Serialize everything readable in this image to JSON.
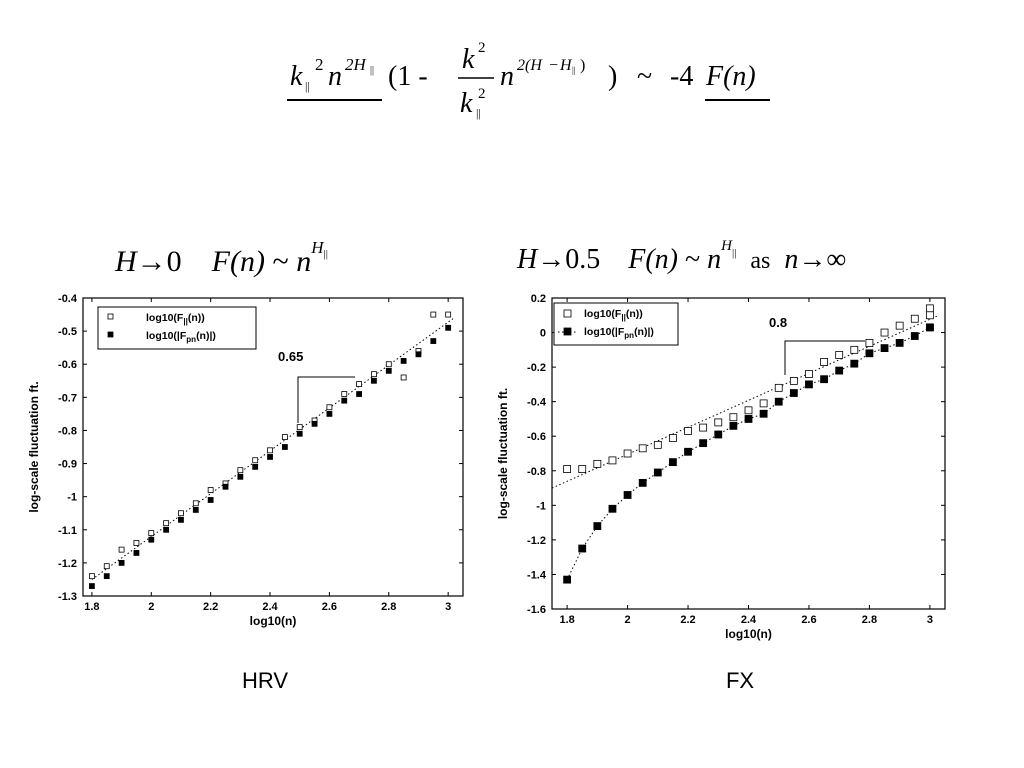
{
  "slide": {
    "formula_parts": {
      "k_par": "k",
      "par_sub": "||",
      "two": "2",
      "n": "n",
      "exp1": "2H",
      "open": "(1  -",
      "k": "k",
      "minus_exp": "2(H",
      "minus_sign": "−",
      "h": "H",
      "close_paren": ")",
      "close": ")",
      "tilde": "~",
      "neg4": "-4",
      "F_n": "F(n)"
    },
    "caption_left": {
      "h": "H",
      "arrow": "→",
      "zero": "0",
      "f": "F",
      "fn_arg": "(n)",
      "tilde": "~",
      "n": "n",
      "exp": "H",
      "exp_sub": "||"
    },
    "caption_right": {
      "h": "H",
      "arrow": "→",
      "half": "0.5",
      "f": "F",
      "fn_arg": "(n)",
      "tilde": "~",
      "n": "n",
      "exp": "H",
      "exp_sub": "||",
      "as": "as",
      "n2": "n",
      "arrow2": "→",
      "inf": "∞"
    },
    "label_left": "HRV",
    "label_right": "FX"
  },
  "chart_data": [
    {
      "type": "scatter",
      "xlabel": "log10(n)",
      "ylabel": "log-scale fluctuation ft.",
      "xlim": [
        1.77,
        3.05
      ],
      "ylim": [
        -1.3,
        -0.4
      ],
      "xticks": [
        1.8,
        2,
        2.2,
        2.4,
        2.6,
        2.8,
        3
      ],
      "xtick_labels": [
        "1.8",
        "2",
        "2.2",
        "2.4",
        "2.6",
        "2.8",
        "3"
      ],
      "yticks": [
        -0.4,
        -0.5,
        -0.6,
        -0.7,
        -0.8,
        -0.9,
        -1,
        -1.1,
        -1.2,
        -1.3
      ],
      "ytick_labels": [
        "-0.4",
        "-0.5",
        "-0.6",
        "-0.7",
        "-0.8",
        "-0.9",
        "-1",
        "-1.1",
        "-1.2",
        "-1.3"
      ],
      "legend_position": "top-left",
      "series": [
        {
          "name": "log10(F||(n))",
          "marker": "open-square",
          "x": [
            1.8,
            1.85,
            1.9,
            1.95,
            2.0,
            2.05,
            2.1,
            2.15,
            2.2,
            2.25,
            2.3,
            2.35,
            2.4,
            2.45,
            2.5,
            2.55,
            2.6,
            2.65,
            2.7,
            2.75,
            2.8,
            2.85,
            2.9,
            2.95,
            3.0
          ],
          "y": [
            -1.24,
            -1.21,
            -1.16,
            -1.14,
            -1.11,
            -1.08,
            -1.05,
            -1.02,
            -0.98,
            -0.96,
            -0.92,
            -0.89,
            -0.86,
            -0.82,
            -0.79,
            -0.77,
            -0.73,
            -0.69,
            -0.66,
            -0.63,
            -0.6,
            -0.64,
            -0.56,
            -0.45,
            -0.45
          ]
        },
        {
          "name": "log10(|Fpn(n)|)",
          "marker": "filled-square",
          "x": [
            1.8,
            1.85,
            1.9,
            1.95,
            2.0,
            2.05,
            2.1,
            2.15,
            2.2,
            2.25,
            2.3,
            2.35,
            2.4,
            2.45,
            2.5,
            2.55,
            2.6,
            2.65,
            2.7,
            2.75,
            2.8,
            2.85,
            2.9,
            2.95,
            3.0
          ],
          "y": [
            -1.27,
            -1.24,
            -1.2,
            -1.17,
            -1.13,
            -1.1,
            -1.07,
            -1.04,
            -1.01,
            -0.97,
            -0.94,
            -0.91,
            -0.88,
            -0.85,
            -0.81,
            -0.78,
            -0.75,
            -0.71,
            -0.69,
            -0.65,
            -0.62,
            -0.59,
            -0.57,
            -0.53,
            -0.49
          ]
        }
      ],
      "fit_line": {
        "style": "dotted",
        "x": [
          1.8,
          3.02
        ],
        "y": [
          -1.25,
          -0.46
        ]
      },
      "annotation": {
        "text": "0.65"
      }
    },
    {
      "type": "scatter",
      "xlabel": "log10(n)",
      "ylabel": "log-scale fluctuation ft.",
      "xlim": [
        1.75,
        3.05
      ],
      "ylim": [
        -1.6,
        0.2
      ],
      "xticks": [
        1.8,
        2,
        2.2,
        2.4,
        2.6,
        2.8,
        3
      ],
      "xtick_labels": [
        "1.8",
        "2",
        "2.2",
        "2.4",
        "2.6",
        "2.8",
        "3"
      ],
      "yticks": [
        0.2,
        0,
        -0.2,
        -0.4,
        -0.6,
        -0.8,
        -1,
        -1.2,
        -1.4,
        -1.6
      ],
      "ytick_labels": [
        "0.2",
        "0",
        "-0.2",
        "-0.4",
        "-0.6",
        "-0.8",
        "-1",
        "-1.2",
        "-1.4",
        "-1.6"
      ],
      "legend_position": "top-left",
      "series": [
        {
          "name": "log10(F||(n))",
          "marker": "open-square",
          "x": [
            1.8,
            1.85,
            1.9,
            1.95,
            2.0,
            2.05,
            2.1,
            2.15,
            2.2,
            2.25,
            2.3,
            2.35,
            2.4,
            2.45,
            2.5,
            2.55,
            2.6,
            2.65,
            2.7,
            2.75,
            2.8,
            2.85,
            2.9,
            2.95,
            3.0,
            3.0
          ],
          "y": [
            -0.79,
            -0.79,
            -0.76,
            -0.74,
            -0.7,
            -0.67,
            -0.65,
            -0.61,
            -0.57,
            -0.55,
            -0.52,
            -0.49,
            -0.45,
            -0.41,
            -0.32,
            -0.28,
            -0.24,
            -0.17,
            -0.13,
            -0.1,
            -0.06,
            0.0,
            0.04,
            0.08,
            0.14,
            0.1
          ]
        },
        {
          "name": "log10(|Fpn(n)|)",
          "marker": "filled-square",
          "x": [
            1.8,
            1.85,
            1.9,
            1.95,
            2.0,
            2.05,
            2.1,
            2.15,
            2.2,
            2.25,
            2.3,
            2.35,
            2.4,
            2.45,
            2.5,
            2.55,
            2.6,
            2.65,
            2.7,
            2.75,
            2.8,
            2.85,
            2.9,
            2.95,
            3.0,
            3.0
          ],
          "y": [
            -1.43,
            -1.25,
            -1.12,
            -1.02,
            -0.94,
            -0.87,
            -0.81,
            -0.75,
            -0.69,
            -0.64,
            -0.59,
            -0.54,
            -0.5,
            -0.47,
            -0.4,
            -0.35,
            -0.3,
            -0.27,
            -0.22,
            -0.18,
            -0.12,
            -0.09,
            -0.06,
            -0.02,
            0.03,
            0.03
          ]
        }
      ],
      "fit_line": {
        "style": "dotted",
        "x": [
          1.75,
          3.03
        ],
        "y": [
          -0.9,
          0.1
        ]
      },
      "fit_curve": {
        "style": "dotted",
        "follows": "log10(|Fpn(n)|)"
      },
      "annotation": {
        "text": "0.8"
      }
    }
  ]
}
